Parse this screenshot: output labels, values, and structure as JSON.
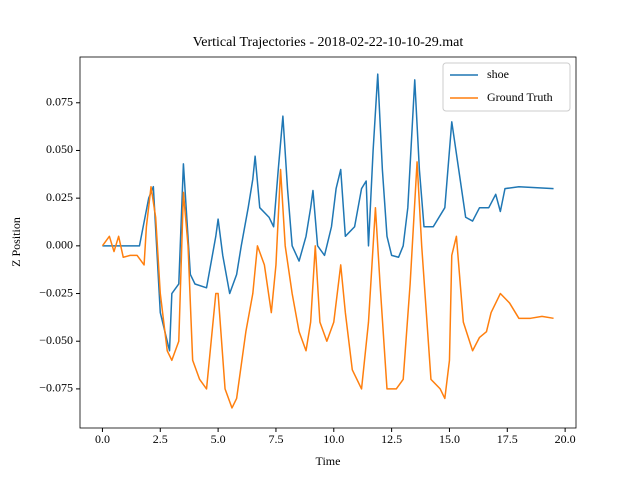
{
  "chart_data": {
    "type": "line",
    "title": "Vertical Trajectories - 2018-02-22-10-10-29.mat",
    "x_label": "Time",
    "y_label": "Z Position",
    "xlim": [
      -0.97,
      20.47
    ],
    "ylim": [
      -0.0955,
      0.099
    ],
    "xticks": [
      {
        "value": 0,
        "label": "0.0"
      },
      {
        "value": 2.5,
        "label": "2.5"
      },
      {
        "value": 5,
        "label": "5.0"
      },
      {
        "value": 7.5,
        "label": "7.5"
      },
      {
        "value": 10,
        "label": "10.0"
      },
      {
        "value": 12.5,
        "label": "12.5"
      },
      {
        "value": 15,
        "label": "15.0"
      },
      {
        "value": 17.5,
        "label": "17.5"
      },
      {
        "value": 20,
        "label": "20.0"
      }
    ],
    "yticks": [
      {
        "value": -0.075,
        "label": "−0.075"
      },
      {
        "value": -0.05,
        "label": "−0.050"
      },
      {
        "value": -0.025,
        "label": "−0.025"
      },
      {
        "value": 0,
        "label": "0.000"
      },
      {
        "value": 0.025,
        "label": "0.025"
      },
      {
        "value": 0.05,
        "label": "0.050"
      },
      {
        "value": 0.075,
        "label": "0.075"
      }
    ],
    "legend": "upper right",
    "series": [
      {
        "name": "shoe",
        "color": "#1f77b4",
        "x": [
          0,
          1.6,
          2.0,
          2.2,
          2.5,
          2.9,
          3.0,
          3.3,
          3.5,
          3.8,
          4.0,
          4.5,
          4.9,
          5.0,
          5.2,
          5.5,
          5.8,
          6.0,
          6.3,
          6.5,
          6.6,
          6.8,
          7.2,
          7.4,
          7.6,
          7.8,
          8.0,
          8.2,
          8.5,
          8.8,
          9.0,
          9.1,
          9.3,
          9.6,
          9.9,
          10.1,
          10.3,
          10.5,
          10.9,
          11.2,
          11.4,
          11.5,
          11.7,
          11.9,
          12.1,
          12.3,
          12.5,
          12.8,
          13.0,
          13.2,
          13.5,
          13.7,
          13.9,
          14.3,
          14.8,
          15.1,
          15.4,
          15.7,
          16.0,
          16.3,
          16.7,
          17.0,
          17.2,
          17.4,
          18.0,
          19.5
        ],
        "values": [
          0,
          0,
          0.025,
          0.031,
          -0.035,
          -0.055,
          -0.025,
          -0.02,
          0.043,
          -0.015,
          -0.02,
          -0.022,
          0.005,
          0.014,
          -0.005,
          -0.025,
          -0.015,
          0,
          0.02,
          0.035,
          0.047,
          0.02,
          0.015,
          0.01,
          0.04,
          0.068,
          0.03,
          0,
          -0.008,
          0.005,
          0.02,
          0.029,
          0,
          -0.005,
          0.01,
          0.03,
          0.04,
          0.005,
          0.01,
          0.03,
          0.034,
          0,
          0.05,
          0.09,
          0.04,
          0.005,
          -0.005,
          -0.006,
          0,
          0.02,
          0.087,
          0.04,
          0.01,
          0.01,
          0.02,
          0.065,
          0.04,
          0.015,
          0.013,
          0.02,
          0.02,
          0.027,
          0.018,
          0.03,
          0.031,
          0.03
        ]
      },
      {
        "name": "Ground Truth",
        "color": "#ff7f0e",
        "x": [
          0,
          0.3,
          0.5,
          0.7,
          0.9,
          1.2,
          1.5,
          1.8,
          1.9,
          2.1,
          2.3,
          2.5,
          2.8,
          3.0,
          3.3,
          3.5,
          3.7,
          3.9,
          4.2,
          4.5,
          4.7,
          4.9,
          5.0,
          5.3,
          5.6,
          5.8,
          6.2,
          6.5,
          6.7,
          7.0,
          7.3,
          7.5,
          7.7,
          7.9,
          8.2,
          8.5,
          8.8,
          9.0,
          9.2,
          9.4,
          9.7,
          10.0,
          10.3,
          10.5,
          10.8,
          11.2,
          11.5,
          11.8,
          12.0,
          12.3,
          12.7,
          13.0,
          13.3,
          13.6,
          13.8,
          14.2,
          14.6,
          14.8,
          15.0,
          15.1,
          15.3,
          15.6,
          16.0,
          16.3,
          16.6,
          16.8,
          17.2,
          17.6,
          18.0,
          18.5,
          19.0,
          19.5
        ],
        "values": [
          0,
          0.005,
          -0.003,
          0.005,
          -0.006,
          -0.005,
          -0.005,
          -0.01,
          0.01,
          0.031,
          0.015,
          -0.025,
          -0.055,
          -0.06,
          -0.05,
          0.028,
          0,
          -0.06,
          -0.07,
          -0.075,
          -0.05,
          -0.025,
          -0.025,
          -0.075,
          -0.085,
          -0.08,
          -0.045,
          -0.025,
          0,
          -0.01,
          -0.035,
          -0.01,
          0.04,
          0,
          -0.025,
          -0.045,
          -0.055,
          -0.04,
          0,
          -0.04,
          -0.05,
          -0.04,
          -0.01,
          -0.035,
          -0.065,
          -0.075,
          -0.04,
          0.02,
          -0.02,
          -0.075,
          -0.075,
          -0.07,
          -0.02,
          0.044,
          0,
          -0.07,
          -0.075,
          -0.08,
          -0.06,
          -0.005,
          0.005,
          -0.04,
          -0.055,
          -0.048,
          -0.045,
          -0.035,
          -0.025,
          -0.03,
          -0.038,
          -0.038,
          -0.037,
          -0.038
        ]
      }
    ]
  }
}
